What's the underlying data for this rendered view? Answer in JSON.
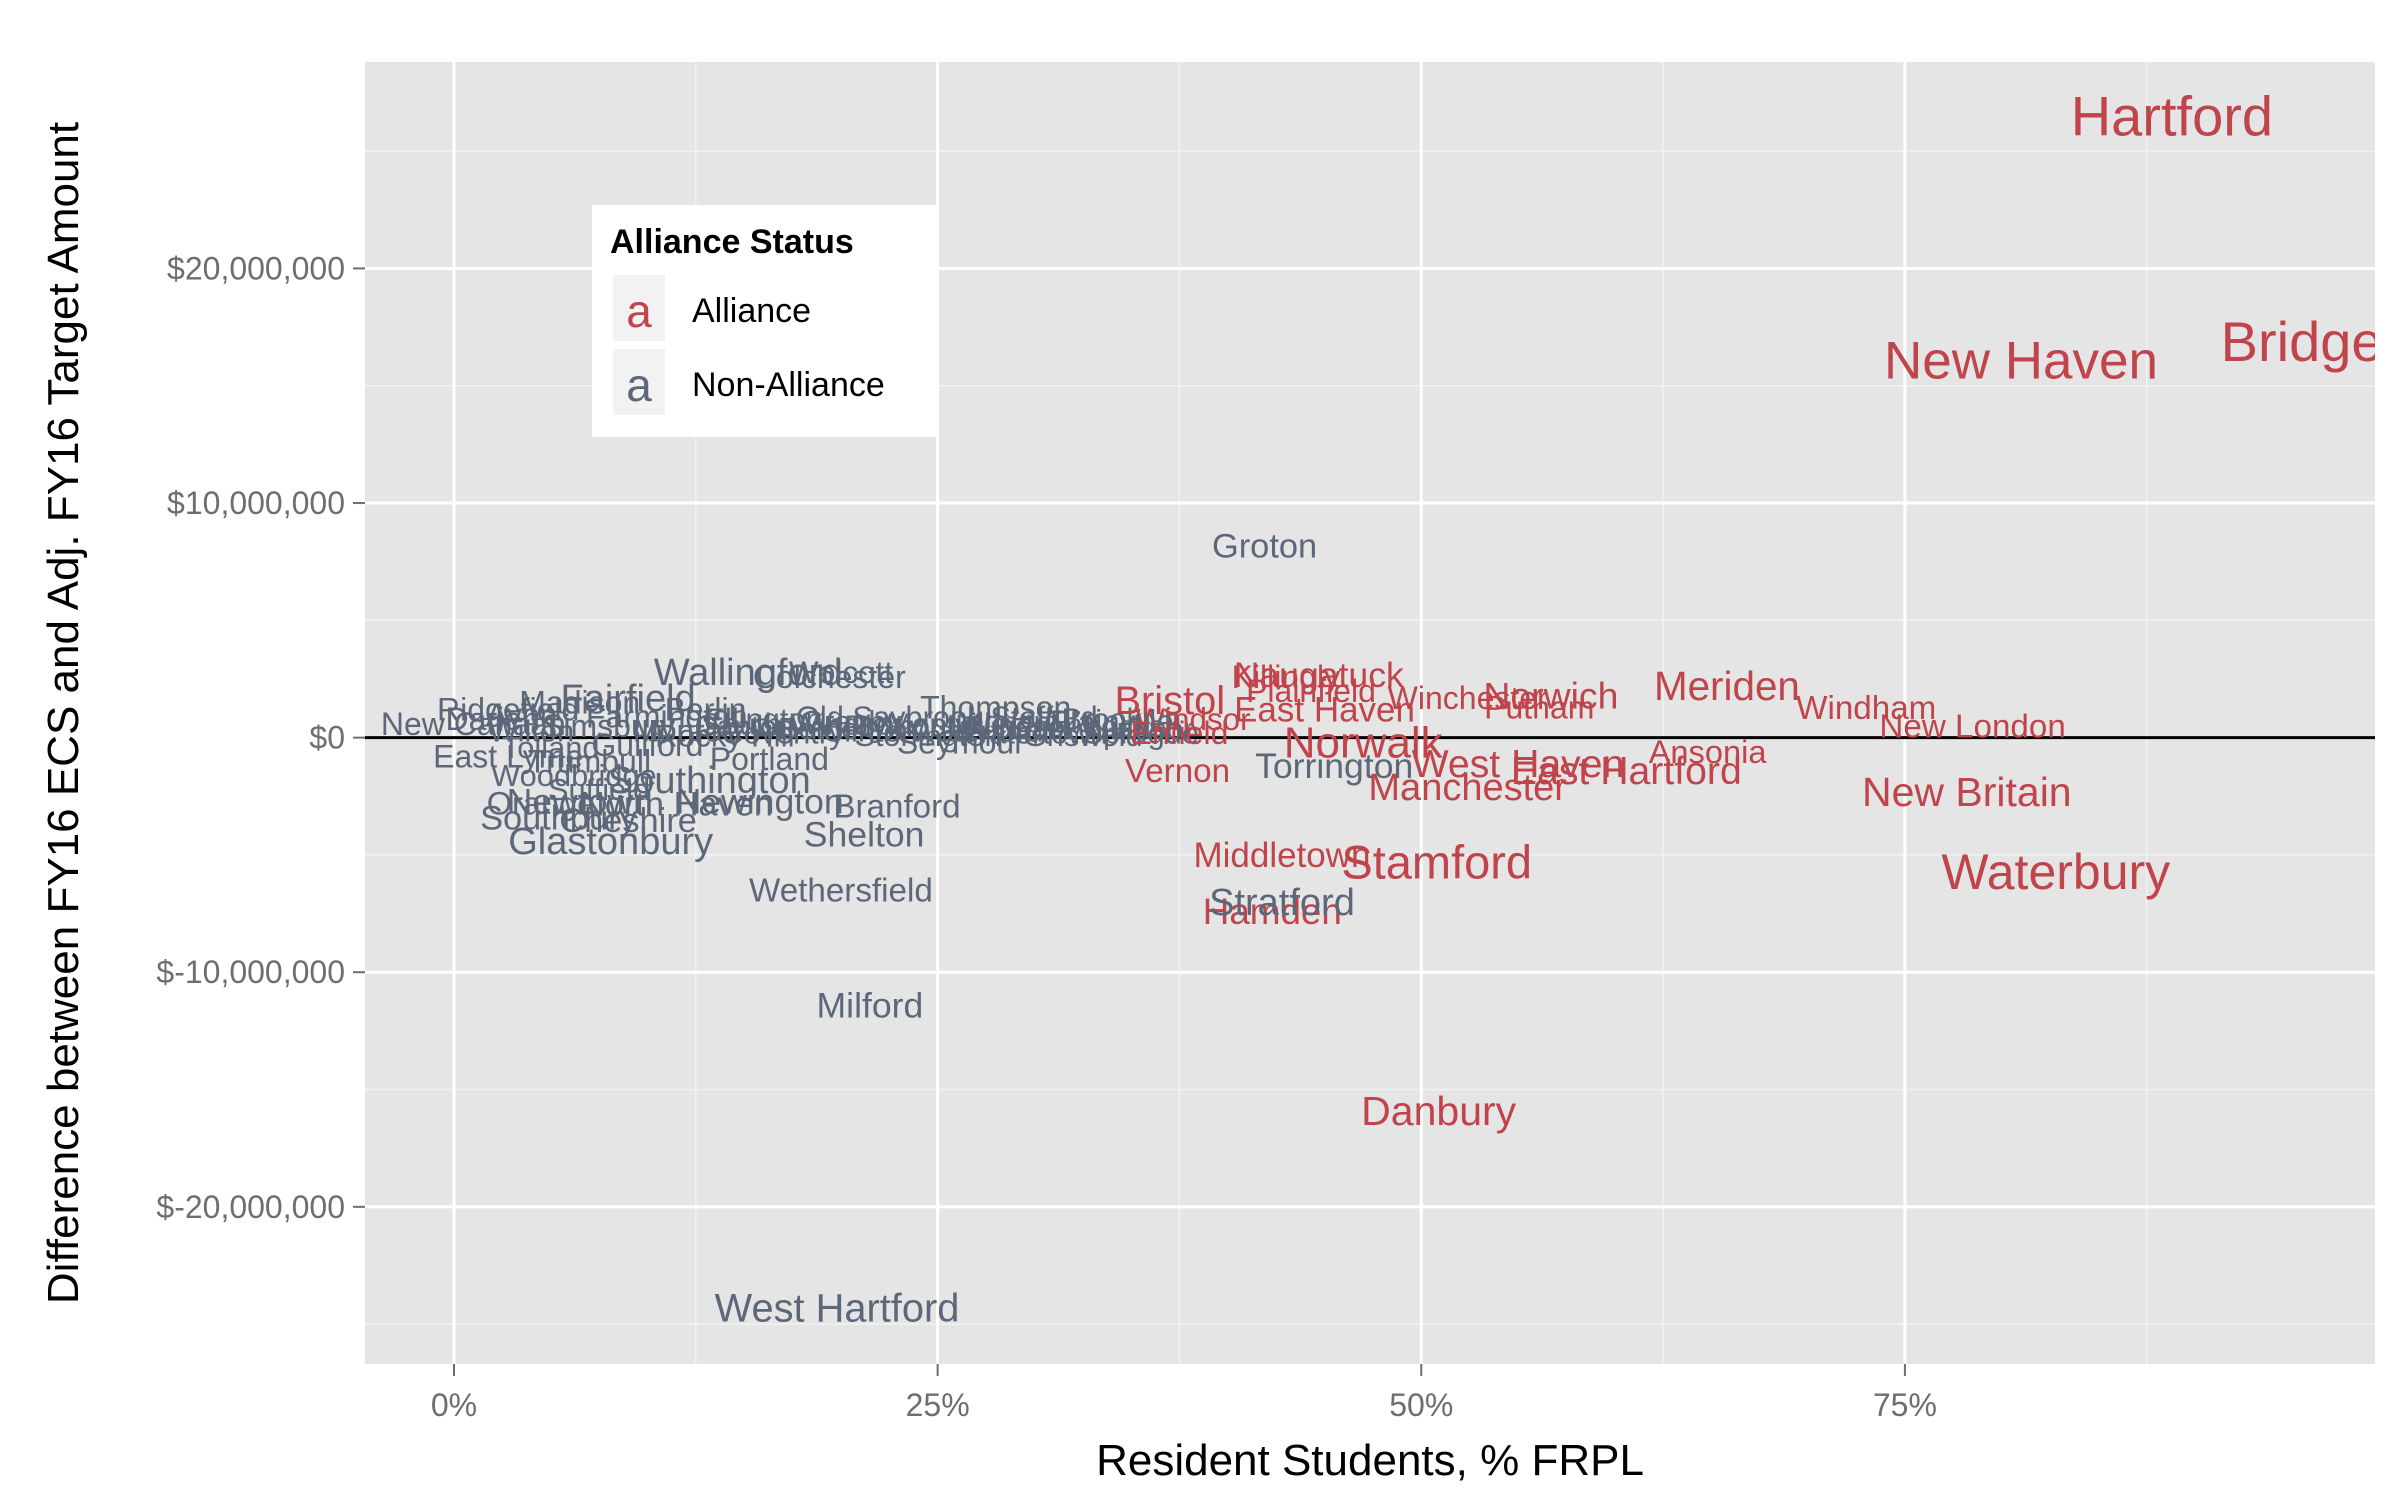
{
  "colors": {
    "alliance": "#C0444B",
    "non_alliance": "#5C6779",
    "panel": "#E5E5E5",
    "grid": "#FFFFFF"
  },
  "chart_data": {
    "type": "scatter",
    "marker": "text-labels",
    "xlabel": "Resident Students, % FRPL",
    "ylabel": "Difference between FY16 ECS and Adj. FY16 Target Amount",
    "xlim": [
      -0.046,
      0.993
    ],
    "ylim": [
      -26700000,
      28800000
    ],
    "x_ticks": [
      0,
      0.25,
      0.5,
      0.75
    ],
    "x_tick_labels": [
      "0%",
      "25%",
      "50%",
      "75%"
    ],
    "y_ticks": [
      -20000000,
      -10000000,
      0,
      10000000,
      20000000
    ],
    "y_tick_labels": [
      "$-20,000,000",
      "$-10,000,000",
      "$0",
      "$10,000,000",
      "$20,000,000"
    ],
    "grid": true,
    "reference_line_y": 0,
    "legend": {
      "title": "Alliance Status",
      "position": "top-left",
      "key_glyph": "a",
      "entries": [
        {
          "label": "Alliance",
          "group": "Alliance"
        },
        {
          "label": "Non-Alliance",
          "group": "Non-Alliance"
        }
      ]
    },
    "points": [
      {
        "label": "Hartford",
        "x": 0.888,
        "y": 26500000,
        "group": "Alliance",
        "size": 3.0
      },
      {
        "label": "Bridgeport",
        "x": 0.98,
        "y": 16900000,
        "group": "Alliance",
        "size": 3.0
      },
      {
        "label": "New Haven",
        "x": 0.81,
        "y": 16100000,
        "group": "Alliance",
        "size": 2.75
      },
      {
        "label": "Waterbury",
        "x": 0.828,
        "y": -5700000,
        "group": "Alliance",
        "size": 2.5
      },
      {
        "label": "Stamford",
        "x": 0.508,
        "y": -5300000,
        "group": "Alliance",
        "size": 2.25
      },
      {
        "label": "Norwalk",
        "x": 0.47,
        "y": -200000,
        "group": "Alliance",
        "size": 2.0
      },
      {
        "label": "Danbury",
        "x": 0.509,
        "y": -15900000,
        "group": "Alliance",
        "size": 1.75
      },
      {
        "label": "New Britain",
        "x": 0.782,
        "y": -2300000,
        "group": "Alliance",
        "size": 1.75
      },
      {
        "label": "Meriden",
        "x": 0.658,
        "y": 2200000,
        "group": "Alliance",
        "size": 1.7
      },
      {
        "label": "Bristol",
        "x": 0.37,
        "y": 1600000,
        "group": "Alliance",
        "size": 1.65
      },
      {
        "label": "East Hartford",
        "x": 0.606,
        "y": -1400000,
        "group": "Alliance",
        "size": 1.6
      },
      {
        "label": "West Haven",
        "x": 0.55,
        "y": -1100000,
        "group": "Alliance",
        "size": 1.6
      },
      {
        "label": "Norwich",
        "x": 0.567,
        "y": 1800000,
        "group": "Alliance",
        "size": 1.45
      },
      {
        "label": "Manchester",
        "x": 0.524,
        "y": -2100000,
        "group": "Alliance",
        "size": 1.5
      },
      {
        "label": "Naugatuck",
        "x": 0.447,
        "y": 2700000,
        "group": "Alliance",
        "size": 1.3
      },
      {
        "label": "East Haven",
        "x": 0.45,
        "y": 1200000,
        "group": "Alliance",
        "size": 1.25
      },
      {
        "label": "Middletown",
        "x": 0.428,
        "y": -5000000,
        "group": "Alliance",
        "size": 1.25
      },
      {
        "label": "Hamden",
        "x": 0.423,
        "y": -7400000,
        "group": "Alliance",
        "size": 1.4
      },
      {
        "label": "Killingly",
        "x": 0.43,
        "y": 2600000,
        "group": "Alliance",
        "size": 1.0
      },
      {
        "label": "Plainfield",
        "x": 0.443,
        "y": 2000000,
        "group": "Alliance",
        "size": 1.0
      },
      {
        "label": "Winchester",
        "x": 0.524,
        "y": 1700000,
        "group": "Alliance",
        "size": 1.0
      },
      {
        "label": "Putnam",
        "x": 0.561,
        "y": 1300000,
        "group": "Alliance",
        "size": 1.0
      },
      {
        "label": "Windham",
        "x": 0.73,
        "y": 1300000,
        "group": "Alliance",
        "size": 1.1
      },
      {
        "label": "New London",
        "x": 0.785,
        "y": 500000,
        "group": "Alliance",
        "size": 1.1
      },
      {
        "label": "Ansonia",
        "x": 0.648,
        "y": -600000,
        "group": "Alliance",
        "size": 1.05
      },
      {
        "label": "Vernon",
        "x": 0.374,
        "y": -1400000,
        "group": "Alliance",
        "size": 1.1
      },
      {
        "label": "Torrington",
        "x": 0.455,
        "y": -1200000,
        "group": "Non-Alliance",
        "size": 1.3
      },
      {
        "label": "Windsor",
        "x": 0.382,
        "y": 800000,
        "group": "Alliance",
        "size": 0.95
      },
      {
        "label": "Enfield",
        "x": 0.375,
        "y": 200000,
        "group": "Alliance",
        "size": 1.0
      },
      {
        "label": "Stratford",
        "x": 0.428,
        "y": -7000000,
        "group": "Non-Alliance",
        "size": 1.5
      },
      {
        "label": "Groton",
        "x": 0.419,
        "y": 8200000,
        "group": "Non-Alliance",
        "size": 1.2
      },
      {
        "label": "West Hartford",
        "x": 0.198,
        "y": -24300000,
        "group": "Non-Alliance",
        "size": 1.65
      },
      {
        "label": "Milford",
        "x": 0.215,
        "y": -11400000,
        "group": "Non-Alliance",
        "size": 1.3
      },
      {
        "label": "Wethersfield",
        "x": 0.2,
        "y": -6500000,
        "group": "Non-Alliance",
        "size": 1.1
      },
      {
        "label": "Shelton",
        "x": 0.212,
        "y": -4100000,
        "group": "Non-Alliance",
        "size": 1.3
      },
      {
        "label": "Glastonbury",
        "x": 0.081,
        "y": -4400000,
        "group": "Non-Alliance",
        "size": 1.5
      },
      {
        "label": "Branford",
        "x": 0.229,
        "y": -2900000,
        "group": "Non-Alliance",
        "size": 1.1
      },
      {
        "label": "Newington",
        "x": 0.158,
        "y": -2700000,
        "group": "Non-Alliance",
        "size": 1.3
      },
      {
        "label": "North Haven",
        "x": 0.115,
        "y": -2800000,
        "group": "Non-Alliance",
        "size": 1.2
      },
      {
        "label": "Southington",
        "x": 0.132,
        "y": -1800000,
        "group": "Non-Alliance",
        "size": 1.5
      },
      {
        "label": "Wallingford",
        "x": 0.152,
        "y": 2800000,
        "group": "Non-Alliance",
        "size": 1.5
      },
      {
        "label": "Colchester",
        "x": 0.194,
        "y": 2600000,
        "group": "Non-Alliance",
        "size": 1.0
      },
      {
        "label": "Wolcott",
        "x": 0.2,
        "y": 2800000,
        "group": "Non-Alliance",
        "size": 0.95
      },
      {
        "label": "Portland",
        "x": 0.163,
        "y": -900000,
        "group": "Non-Alliance",
        "size": 1.0
      },
      {
        "label": "Seymour",
        "x": 0.262,
        "y": -200000,
        "group": "Non-Alliance",
        "size": 1.0
      },
      {
        "label": "Thompson",
        "x": 0.28,
        "y": 1300000,
        "group": "Non-Alliance",
        "size": 1.0
      },
      {
        "label": "Plainville",
        "x": 0.34,
        "y": 700000,
        "group": "Non-Alliance",
        "size": 0.95
      },
      {
        "label": "Southbury",
        "x": 0.054,
        "y": -3400000,
        "group": "Non-Alliance",
        "size": 1.2
      },
      {
        "label": "Orange",
        "x": 0.045,
        "y": -2800000,
        "group": "Non-Alliance",
        "size": 1.05
      },
      {
        "label": "Newtown",
        "x": 0.065,
        "y": -2700000,
        "group": "Non-Alliance",
        "size": 1.3
      },
      {
        "label": "Cheshire",
        "x": 0.09,
        "y": -3500000,
        "group": "Non-Alliance",
        "size": 1.2
      },
      {
        "label": "Fairfield",
        "x": 0.09,
        "y": 1700000,
        "group": "Non-Alliance",
        "size": 1.5
      },
      {
        "label": "New Canaan",
        "x": 0.01,
        "y": 600000,
        "group": "Non-Alliance",
        "size": 1.0
      },
      {
        "label": "Darien",
        "x": 0.02,
        "y": 800000,
        "group": "Non-Alliance",
        "size": 1.0
      },
      {
        "label": "Ridgefield",
        "x": 0.028,
        "y": 1200000,
        "group": "Non-Alliance",
        "size": 1.0
      },
      {
        "label": "Madison",
        "x": 0.065,
        "y": 1500000,
        "group": "Non-Alliance",
        "size": 1.0
      },
      {
        "label": "East Lyme",
        "x": 0.028,
        "y": -800000,
        "group": "Non-Alliance",
        "size": 1.0
      },
      {
        "label": "Trumbull",
        "x": 0.07,
        "y": -1000000,
        "group": "Non-Alliance",
        "size": 1.0
      },
      {
        "label": "Woodbridge",
        "x": 0.062,
        "y": -1600000,
        "group": "Non-Alliance",
        "size": 0.9
      },
      {
        "label": "Suffield",
        "x": 0.075,
        "y": -2200000,
        "group": "Non-Alliance",
        "size": 0.9
      },
      {
        "label": "Wilton",
        "x": 0.04,
        "y": 300000,
        "group": "Non-Alliance",
        "size": 0.9
      },
      {
        "label": "Tolland",
        "x": 0.05,
        "y": -400000,
        "group": "Non-Alliance",
        "size": 0.9
      },
      {
        "label": "Guilford",
        "x": 0.1,
        "y": -300000,
        "group": "Non-Alliance",
        "size": 1.0
      },
      {
        "label": "Simsbury",
        "x": 0.08,
        "y": 500000,
        "group": "Non-Alliance",
        "size": 1.0
      },
      {
        "label": "Avon",
        "x": 0.035,
        "y": 1000000,
        "group": "Non-Alliance",
        "size": 0.95
      },
      {
        "label": "Farmington",
        "x": 0.11,
        "y": 900000,
        "group": "Non-Alliance",
        "size": 1.0
      },
      {
        "label": "Monroe",
        "x": 0.12,
        "y": 300000,
        "group": "Non-Alliance",
        "size": 0.95
      },
      {
        "label": "Berlin",
        "x": 0.13,
        "y": 1200000,
        "group": "Non-Alliance",
        "size": 1.0
      },
      {
        "label": "Rocky Hill",
        "x": 0.14,
        "y": 100000,
        "group": "Non-Alliance",
        "size": 0.95
      },
      {
        "label": "Canton",
        "x": 0.15,
        "y": 500000,
        "group": "Non-Alliance",
        "size": 0.9
      },
      {
        "label": "Ellington",
        "x": 0.16,
        "y": 800000,
        "group": "Non-Alliance",
        "size": 0.9
      },
      {
        "label": "Coventry",
        "x": 0.17,
        "y": 200000,
        "group": "Non-Alliance",
        "size": 0.9
      },
      {
        "label": "South Windsor",
        "x": 0.18,
        "y": 600000,
        "group": "Non-Alliance",
        "size": 0.9
      },
      {
        "label": "Bethel",
        "x": 0.19,
        "y": 400000,
        "group": "Non-Alliance",
        "size": 0.9
      },
      {
        "label": "Granby",
        "x": 0.205,
        "y": 700000,
        "group": "Non-Alliance",
        "size": 0.9
      },
      {
        "label": "Clinton",
        "x": 0.215,
        "y": 300000,
        "group": "Non-Alliance",
        "size": 0.9
      },
      {
        "label": "Old Saybrook",
        "x": 0.225,
        "y": 900000,
        "group": "Non-Alliance",
        "size": 0.9
      },
      {
        "label": "Plymouth",
        "x": 0.235,
        "y": 500000,
        "group": "Non-Alliance",
        "size": 0.9
      },
      {
        "label": "Stonington",
        "x": 0.245,
        "y": 100000,
        "group": "Non-Alliance",
        "size": 0.9
      },
      {
        "label": "Montville",
        "x": 0.255,
        "y": 600000,
        "group": "Non-Alliance",
        "size": 0.9
      },
      {
        "label": "Waterford",
        "x": 0.27,
        "y": 300000,
        "group": "Non-Alliance",
        "size": 0.9
      },
      {
        "label": "Ledyard",
        "x": 0.285,
        "y": 700000,
        "group": "Non-Alliance",
        "size": 0.9
      },
      {
        "label": "Watertown",
        "x": 0.3,
        "y": 200000,
        "group": "Non-Alliance",
        "size": 0.9
      },
      {
        "label": "Windsor Locks",
        "x": 0.315,
        "y": 500000,
        "group": "Non-Alliance",
        "size": 0.9
      },
      {
        "label": "Griswold",
        "x": 0.325,
        "y": 100000,
        "group": "Non-Alliance",
        "size": 0.9
      },
      {
        "label": "Stafford",
        "x": 0.305,
        "y": 900000,
        "group": "Non-Alliance",
        "size": 0.9
      },
      {
        "label": "East Windsor",
        "x": 0.335,
        "y": 400000,
        "group": "Non-Alliance",
        "size": 0.9
      },
      {
        "label": "Brooklyn",
        "x": 0.345,
        "y": 800000,
        "group": "Non-Alliance",
        "size": 0.9
      },
      {
        "label": "Sprague",
        "x": 0.355,
        "y": 200000,
        "group": "Non-Alliance",
        "size": 0.9
      }
    ]
  }
}
